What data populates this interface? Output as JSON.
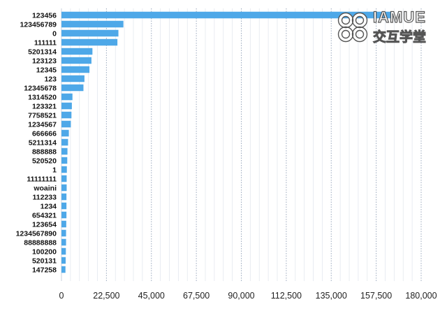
{
  "chart_data": {
    "type": "bar",
    "orientation": "horizontal",
    "title": "",
    "xlabel": "",
    "ylabel": "",
    "categories": [
      "123456",
      "123456789",
      "0",
      "111111",
      "5201314",
      "123123",
      "12345",
      "123",
      "12345678",
      "1314520",
      "123321",
      "7758521",
      "1234567",
      "666666",
      "5211314",
      "888888",
      "520520",
      "1",
      "11111111",
      "woaini",
      "112233",
      "1234",
      "654321",
      "123654",
      "1234567890",
      "88888888",
      "100200",
      "520131",
      "147258"
    ],
    "values": [
      165000,
      31000,
      28500,
      28000,
      15500,
      15000,
      14000,
      11500,
      11000,
      5500,
      5200,
      5000,
      4700,
      3700,
      3300,
      3000,
      2900,
      2700,
      2600,
      2600,
      2500,
      2500,
      2500,
      2400,
      2300,
      2300,
      2200,
      2100,
      2000
    ],
    "xlim": [
      0,
      180000
    ],
    "x_ticks": [
      "0",
      "22,500",
      "45,000",
      "67,500",
      "90,000",
      "112,500",
      "135,000",
      "157,500",
      "180,000"
    ],
    "x_tick_values": [
      0,
      22500,
      45000,
      67500,
      90000,
      112500,
      135000,
      157500,
      180000
    ],
    "grid": "vertical dotted",
    "legend": "none",
    "bar_color": "#4ea8e8",
    "grid_color": "#9aa8bd"
  },
  "watermark": {
    "title": "IAMUE",
    "subtitle": "交互学堂"
  }
}
